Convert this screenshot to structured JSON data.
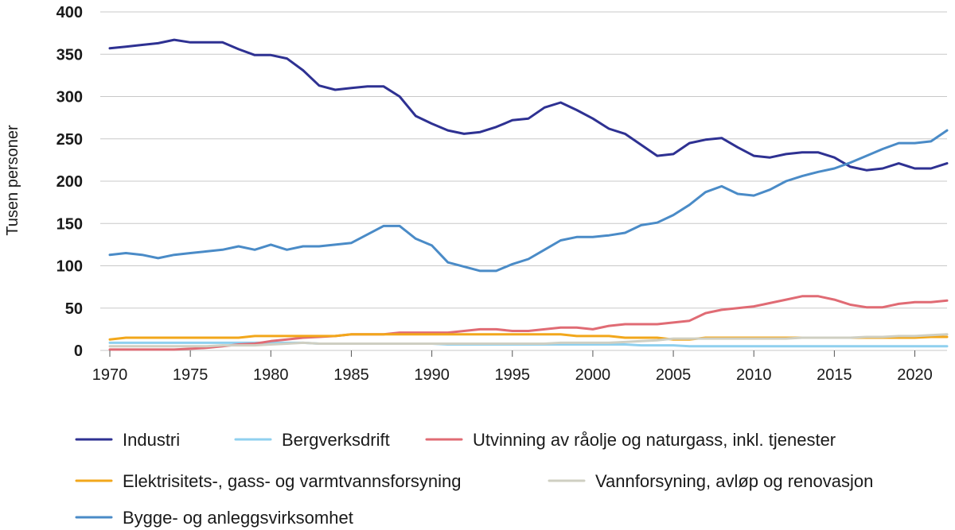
{
  "chart_data": {
    "type": "line",
    "title": "",
    "xlabel": "",
    "ylabel": "Tusen personer",
    "xlim": [
      1970,
      2022
    ],
    "ylim": [
      0,
      400
    ],
    "x_ticks": [
      1970,
      1975,
      1980,
      1985,
      1990,
      1995,
      2000,
      2005,
      2010,
      2015,
      2020
    ],
    "y_ticks": [
      0,
      50,
      100,
      150,
      200,
      250,
      300,
      350,
      400
    ],
    "grid": "horizontal",
    "legend_position": "bottom",
    "x": [
      1970,
      1971,
      1972,
      1973,
      1974,
      1975,
      1976,
      1977,
      1978,
      1979,
      1980,
      1981,
      1982,
      1983,
      1984,
      1985,
      1986,
      1987,
      1988,
      1989,
      1990,
      1991,
      1992,
      1993,
      1994,
      1995,
      1996,
      1997,
      1998,
      1999,
      2000,
      2001,
      2002,
      2003,
      2004,
      2005,
      2006,
      2007,
      2008,
      2009,
      2010,
      2011,
      2012,
      2013,
      2014,
      2015,
      2016,
      2017,
      2018,
      2019,
      2020,
      2021,
      2022
    ],
    "series": [
      {
        "name": "Industri",
        "color": "#2e3192",
        "values": [
          357,
          359,
          361,
          363,
          367,
          364,
          364,
          364,
          356,
          349,
          349,
          345,
          331,
          313,
          308,
          310,
          312,
          312,
          300,
          277,
          268,
          260,
          256,
          258,
          264,
          272,
          274,
          287,
          293,
          284,
          274,
          262,
          256,
          243,
          230,
          232,
          245,
          249,
          251,
          240,
          230,
          228,
          232,
          234,
          234,
          228,
          217,
          213,
          215,
          221,
          215,
          215,
          221
        ]
      },
      {
        "name": "Bergverksdrift",
        "color": "#8fd0ef",
        "values": [
          9,
          9,
          9,
          9,
          9,
          9,
          9,
          9,
          9,
          9,
          9,
          9,
          9,
          8,
          8,
          8,
          8,
          8,
          8,
          8,
          8,
          7,
          7,
          7,
          7,
          7,
          7,
          7,
          7,
          7,
          7,
          7,
          7,
          6,
          6,
          6,
          5,
          5,
          5,
          5,
          5,
          5,
          5,
          5,
          5,
          5,
          5,
          5,
          5,
          5,
          5,
          5,
          5
        ]
      },
      {
        "name": "Utvinning av råolje og naturgass, inkl. tjenester",
        "color": "#e06b74",
        "values": [
          1,
          1,
          1,
          1,
          1,
          2,
          3,
          5,
          7,
          8,
          11,
          13,
          15,
          16,
          17,
          19,
          19,
          19,
          21,
          21,
          21,
          21,
          23,
          25,
          25,
          23,
          23,
          25,
          27,
          27,
          25,
          29,
          31,
          31,
          31,
          33,
          35,
          44,
          48,
          50,
          52,
          56,
          60,
          64,
          64,
          60,
          54,
          51,
          51,
          55,
          57,
          57,
          59
        ]
      },
      {
        "name": "Elektrisitets-, gass- og varmtvannsforsyning",
        "color": "#f2a71b",
        "values": [
          13,
          15,
          15,
          15,
          15,
          15,
          15,
          15,
          15,
          17,
          17,
          17,
          17,
          17,
          17,
          19,
          19,
          19,
          19,
          19,
          19,
          19,
          19,
          19,
          19,
          19,
          19,
          19,
          19,
          17,
          17,
          17,
          15,
          15,
          15,
          13,
          13,
          15,
          15,
          15,
          15,
          15,
          15,
          15,
          15,
          15,
          15,
          15,
          15,
          15,
          15,
          16,
          16
        ]
      },
      {
        "name": "Vannforsyning, avløp og renovasjon",
        "color": "#cfcfc2",
        "values": [
          5,
          5,
          5,
          5,
          5,
          5,
          5,
          6,
          6,
          6,
          7,
          8,
          9,
          8,
          8,
          8,
          8,
          8,
          8,
          8,
          8,
          8,
          8,
          8,
          8,
          8,
          8,
          8,
          9,
          9,
          9,
          9,
          10,
          11,
          12,
          14,
          14,
          14,
          14,
          14,
          14,
          14,
          14,
          15,
          15,
          15,
          15,
          16,
          16,
          17,
          17,
          18,
          19
        ]
      },
      {
        "name": "Bygge- og anleggsvirksomhet",
        "color": "#4a8bc7",
        "values": [
          113,
          115,
          113,
          109,
          113,
          115,
          117,
          119,
          123,
          119,
          125,
          119,
          123,
          123,
          125,
          127,
          137,
          147,
          147,
          132,
          124,
          104,
          99,
          94,
          94,
          102,
          108,
          119,
          130,
          134,
          134,
          136,
          139,
          148,
          151,
          160,
          172,
          187,
          194,
          185,
          183,
          190,
          200,
          206,
          211,
          215,
          222,
          230,
          238,
          245,
          245,
          247,
          260
        ]
      }
    ]
  }
}
